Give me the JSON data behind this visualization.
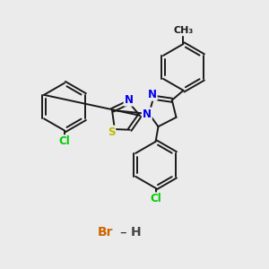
{
  "bg_color": "#ebebeb",
  "bond_color": "#1a1a1a",
  "bond_width": 1.4,
  "atom_colors": {
    "N": "#0000ee",
    "S": "#bbbb00",
    "Cl": "#00cc00",
    "Br": "#cc6600",
    "H": "#444444",
    "C": "#1a1a1a"
  },
  "font_size_atoms": 8.5,
  "font_size_salt": 10,
  "font_size_ch3": 8
}
